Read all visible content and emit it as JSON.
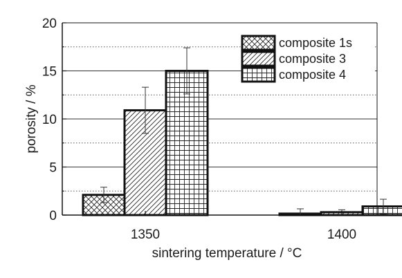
{
  "chart_data": {
    "type": "bar",
    "title": "",
    "xlabel": "sintering temperature / °C",
    "ylabel": "porosity / %",
    "categories": [
      "1350",
      "1400"
    ],
    "ylim": [
      0,
      20
    ],
    "yticks": [
      0,
      5,
      10,
      15,
      20
    ],
    "grid": {
      "major_lines": [
        5,
        10,
        15
      ],
      "minor_dotted_lines": [
        2.5,
        7.5,
        12.5,
        17.5
      ]
    },
    "legend_position": "top-right",
    "series": [
      {
        "name": "composite 1s",
        "pattern": "crosshatch",
        "values": [
          2.1,
          0.15
        ],
        "errors": [
          0.8,
          0.5
        ]
      },
      {
        "name": "composite 3",
        "pattern": "diagonal",
        "values": [
          10.9,
          0.3
        ],
        "errors": [
          2.4,
          0.25
        ]
      },
      {
        "name": "composite 4",
        "pattern": "grid",
        "values": [
          15.0,
          0.9
        ],
        "errors": [
          2.4,
          0.75
        ]
      }
    ],
    "colors": {
      "bar_stroke": "#111111",
      "hatch": "#222222",
      "background": "#ffffff"
    }
  }
}
